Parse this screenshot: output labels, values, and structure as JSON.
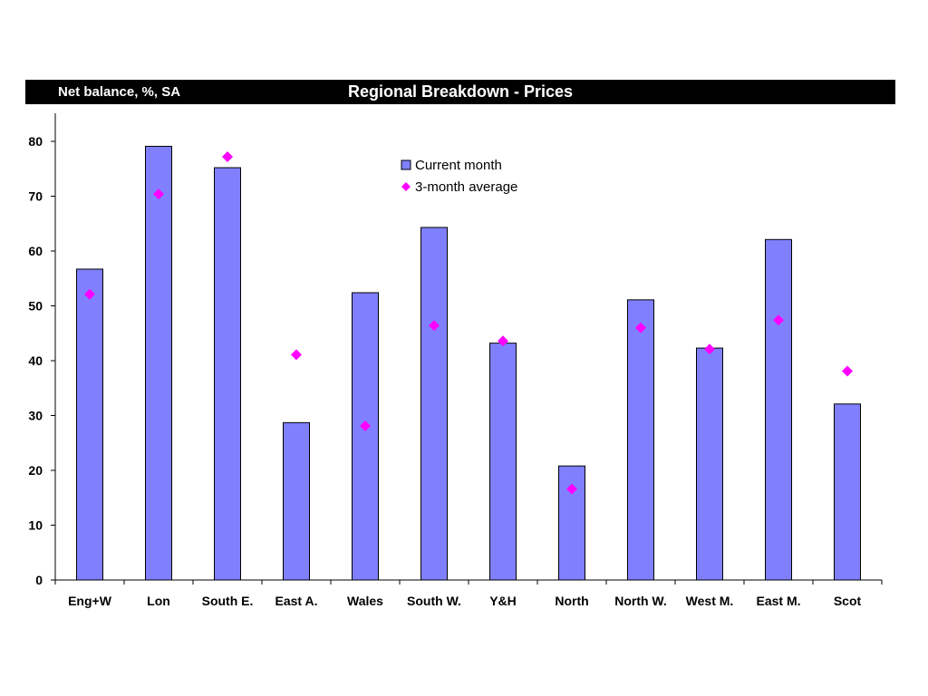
{
  "header": {
    "units": "Net balance, %, SA",
    "title": "Regional Breakdown - Prices"
  },
  "chart_data": {
    "type": "bar",
    "title": "Regional Breakdown - Prices",
    "ylabel": "Net balance, %, SA",
    "ylim": [
      0,
      80
    ],
    "yticks": [
      0,
      10,
      20,
      30,
      40,
      50,
      60,
      70,
      80
    ],
    "grid": false,
    "legend_position": "top-center",
    "categories": [
      "Eng+W",
      "Lon",
      "South E.",
      "East A.",
      "Wales",
      "South W.",
      "Y&H",
      "North",
      "North W.",
      "West M.",
      "East M.",
      "Scot"
    ],
    "series": [
      {
        "name": "Current month",
        "type": "bar",
        "color": "#8080ff",
        "values": [
          56.7,
          79.1,
          75.2,
          28.7,
          52.4,
          64.3,
          43.2,
          20.8,
          51.1,
          42.3,
          62.1,
          32.1
        ]
      },
      {
        "name": "3-month average",
        "type": "scatter",
        "marker": "diamond",
        "color": "#ff00ff",
        "values": [
          52.1,
          70.4,
          77.2,
          41.1,
          28.1,
          46.4,
          43.6,
          16.6,
          46.0,
          42.1,
          47.4,
          38.1
        ]
      }
    ]
  }
}
